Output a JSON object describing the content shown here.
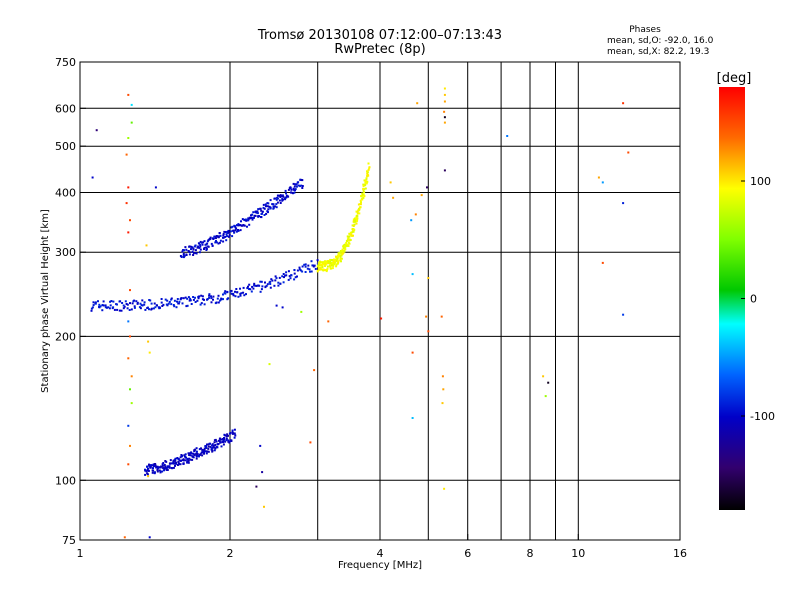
{
  "chart_data": {
    "type": "scatter",
    "title": "Tromsø 20130108 07:12:00–07:13:43",
    "subtitle": "RwPretec (8p)",
    "xlabel": "Frequency [MHz]",
    "ylabel": "Stationary phase Virtual Height [km]",
    "xscale": "log",
    "yscale": "log",
    "xlim": [
      1,
      16
    ],
    "ylim": [
      75,
      750
    ],
    "xticks": [
      1,
      2,
      4,
      6,
      8,
      10,
      16
    ],
    "xtick_labels": [
      "1",
      "2",
      "4",
      "6",
      "8",
      "10",
      "16"
    ],
    "xgrid": [
      1,
      2,
      3,
      4,
      5,
      6,
      7,
      8,
      9,
      10,
      16
    ],
    "yticks": [
      75,
      100,
      200,
      300,
      400,
      500,
      600,
      750
    ],
    "ytick_labels": [
      "75",
      "100",
      "200",
      "300",
      "400",
      "500",
      "600",
      "750"
    ],
    "ygrid": [
      100,
      200,
      300,
      400,
      500,
      600
    ],
    "grid": true,
    "legend": {
      "title": "Phases",
      "lines": [
        "mean, sd,O:  -92.0, 16.0",
        "mean, sd,X:  82.2, 19.3"
      ]
    },
    "colorbar": {
      "label": "[deg]",
      "vmin": -180,
      "vmax": 180,
      "ticks": [
        100,
        0,
        -100
      ],
      "tick_labels": [
        "100",
        "0",
        "-100"
      ]
    },
    "traces": [
      {
        "trace": "o-mode-lower",
        "phase": -95,
        "f_start": 1.05,
        "f_end": 3.0,
        "h_start": 232,
        "h_end": 285,
        "exponent": 3
      },
      {
        "trace": "o-mode-upper",
        "phase": -100,
        "f_start": 1.6,
        "f_end": 2.8,
        "h_start": 300,
        "h_end": 420,
        "exponent": 1.5
      },
      {
        "trace": "x-mode",
        "phase": 90,
        "f_start": 3.0,
        "f_end": 3.8,
        "h_start": 280,
        "h_end": 450,
        "exponent": 3
      },
      {
        "trace": "e-region",
        "phase": -105,
        "f_start": 1.35,
        "f_end": 2.05,
        "h_start": 105,
        "h_end": 125,
        "exponent": 1.5
      }
    ],
    "points": [
      {
        "x": 1.25,
        "y": 640,
        "phase": 150
      },
      {
        "x": 1.27,
        "y": 610,
        "phase": -30
      },
      {
        "x": 1.25,
        "y": 520,
        "phase": 60
      },
      {
        "x": 1.27,
        "y": 560,
        "phase": 40
      },
      {
        "x": 1.24,
        "y": 480,
        "phase": 140
      },
      {
        "x": 1.25,
        "y": 410,
        "phase": 170
      },
      {
        "x": 1.24,
        "y": 380,
        "phase": 160
      },
      {
        "x": 1.26,
        "y": 350,
        "phase": 150
      },
      {
        "x": 1.25,
        "y": 330,
        "phase": 170
      },
      {
        "x": 1.26,
        "y": 250,
        "phase": 150
      },
      {
        "x": 1.25,
        "y": 215,
        "phase": -60
      },
      {
        "x": 1.26,
        "y": 200,
        "phase": 150
      },
      {
        "x": 1.25,
        "y": 180,
        "phase": 140
      },
      {
        "x": 1.27,
        "y": 165,
        "phase": 130
      },
      {
        "x": 1.26,
        "y": 155,
        "phase": 40
      },
      {
        "x": 1.27,
        "y": 145,
        "phase": 60
      },
      {
        "x": 1.25,
        "y": 130,
        "phase": -80
      },
      {
        "x": 1.26,
        "y": 118,
        "phase": 130
      },
      {
        "x": 1.25,
        "y": 108,
        "phase": 150
      },
      {
        "x": 1.23,
        "y": 76,
        "phase": 140
      },
      {
        "x": 1.37,
        "y": 195,
        "phase": 110
      },
      {
        "x": 1.38,
        "y": 185,
        "phase": 100
      },
      {
        "x": 1.36,
        "y": 310,
        "phase": 110
      },
      {
        "x": 1.37,
        "y": 102,
        "phase": 110
      },
      {
        "x": 1.42,
        "y": 410,
        "phase": -100
      },
      {
        "x": 1.08,
        "y": 540,
        "phase": -140
      },
      {
        "x": 1.06,
        "y": 430,
        "phase": -100
      },
      {
        "x": 1.38,
        "y": 76,
        "phase": -100
      },
      {
        "x": 3.15,
        "y": 215,
        "phase": 140
      },
      {
        "x": 2.48,
        "y": 232,
        "phase": -100
      },
      {
        "x": 2.55,
        "y": 230,
        "phase": -100
      },
      {
        "x": 2.78,
        "y": 225,
        "phase": 60
      },
      {
        "x": 2.3,
        "y": 118,
        "phase": -100
      },
      {
        "x": 2.32,
        "y": 104,
        "phase": -120
      },
      {
        "x": 2.26,
        "y": 97,
        "phase": -150
      },
      {
        "x": 2.34,
        "y": 88,
        "phase": 110
      },
      {
        "x": 2.4,
        "y": 175,
        "phase": 80
      },
      {
        "x": 2.95,
        "y": 170,
        "phase": 140
      },
      {
        "x": 2.9,
        "y": 120,
        "phase": 150
      },
      {
        "x": 4.02,
        "y": 218,
        "phase": 170
      },
      {
        "x": 4.25,
        "y": 390,
        "phase": 120
      },
      {
        "x": 4.2,
        "y": 420,
        "phase": 110
      },
      {
        "x": 4.75,
        "y": 615,
        "phase": 120
      },
      {
        "x": 4.62,
        "y": 350,
        "phase": -50
      },
      {
        "x": 4.72,
        "y": 360,
        "phase": 130
      },
      {
        "x": 4.65,
        "y": 270,
        "phase": -40
      },
      {
        "x": 4.65,
        "y": 185,
        "phase": 150
      },
      {
        "x": 4.65,
        "y": 135,
        "phase": -40
      },
      {
        "x": 4.85,
        "y": 395,
        "phase": 120
      },
      {
        "x": 4.97,
        "y": 410,
        "phase": -150
      },
      {
        "x": 5.0,
        "y": 265,
        "phase": 110
      },
      {
        "x": 4.95,
        "y": 220,
        "phase": 130
      },
      {
        "x": 5.0,
        "y": 205,
        "phase": 150
      },
      {
        "x": 5.4,
        "y": 660,
        "phase": 100
      },
      {
        "x": 5.4,
        "y": 640,
        "phase": 110
      },
      {
        "x": 5.4,
        "y": 620,
        "phase": 120
      },
      {
        "x": 5.38,
        "y": 590,
        "phase": 130
      },
      {
        "x": 5.4,
        "y": 575,
        "phase": -170
      },
      {
        "x": 5.4,
        "y": 560,
        "phase": 120
      },
      {
        "x": 5.4,
        "y": 445,
        "phase": -150
      },
      {
        "x": 5.35,
        "y": 165,
        "phase": 130
      },
      {
        "x": 5.36,
        "y": 155,
        "phase": 120
      },
      {
        "x": 5.34,
        "y": 145,
        "phase": 110
      },
      {
        "x": 5.32,
        "y": 220,
        "phase": 140
      },
      {
        "x": 5.38,
        "y": 96,
        "phase": 100
      },
      {
        "x": 7.2,
        "y": 525,
        "phase": -60
      },
      {
        "x": 8.5,
        "y": 165,
        "phase": 110
      },
      {
        "x": 8.7,
        "y": 160,
        "phase": -170
      },
      {
        "x": 8.6,
        "y": 150,
        "phase": 60
      },
      {
        "x": 11.0,
        "y": 430,
        "phase": 120
      },
      {
        "x": 11.2,
        "y": 420,
        "phase": -50
      },
      {
        "x": 11.2,
        "y": 285,
        "phase": 150
      },
      {
        "x": 12.3,
        "y": 615,
        "phase": 160
      },
      {
        "x": 12.6,
        "y": 485,
        "phase": 150
      },
      {
        "x": 12.3,
        "y": 380,
        "phase": -90
      },
      {
        "x": 12.3,
        "y": 222,
        "phase": -80
      }
    ]
  }
}
